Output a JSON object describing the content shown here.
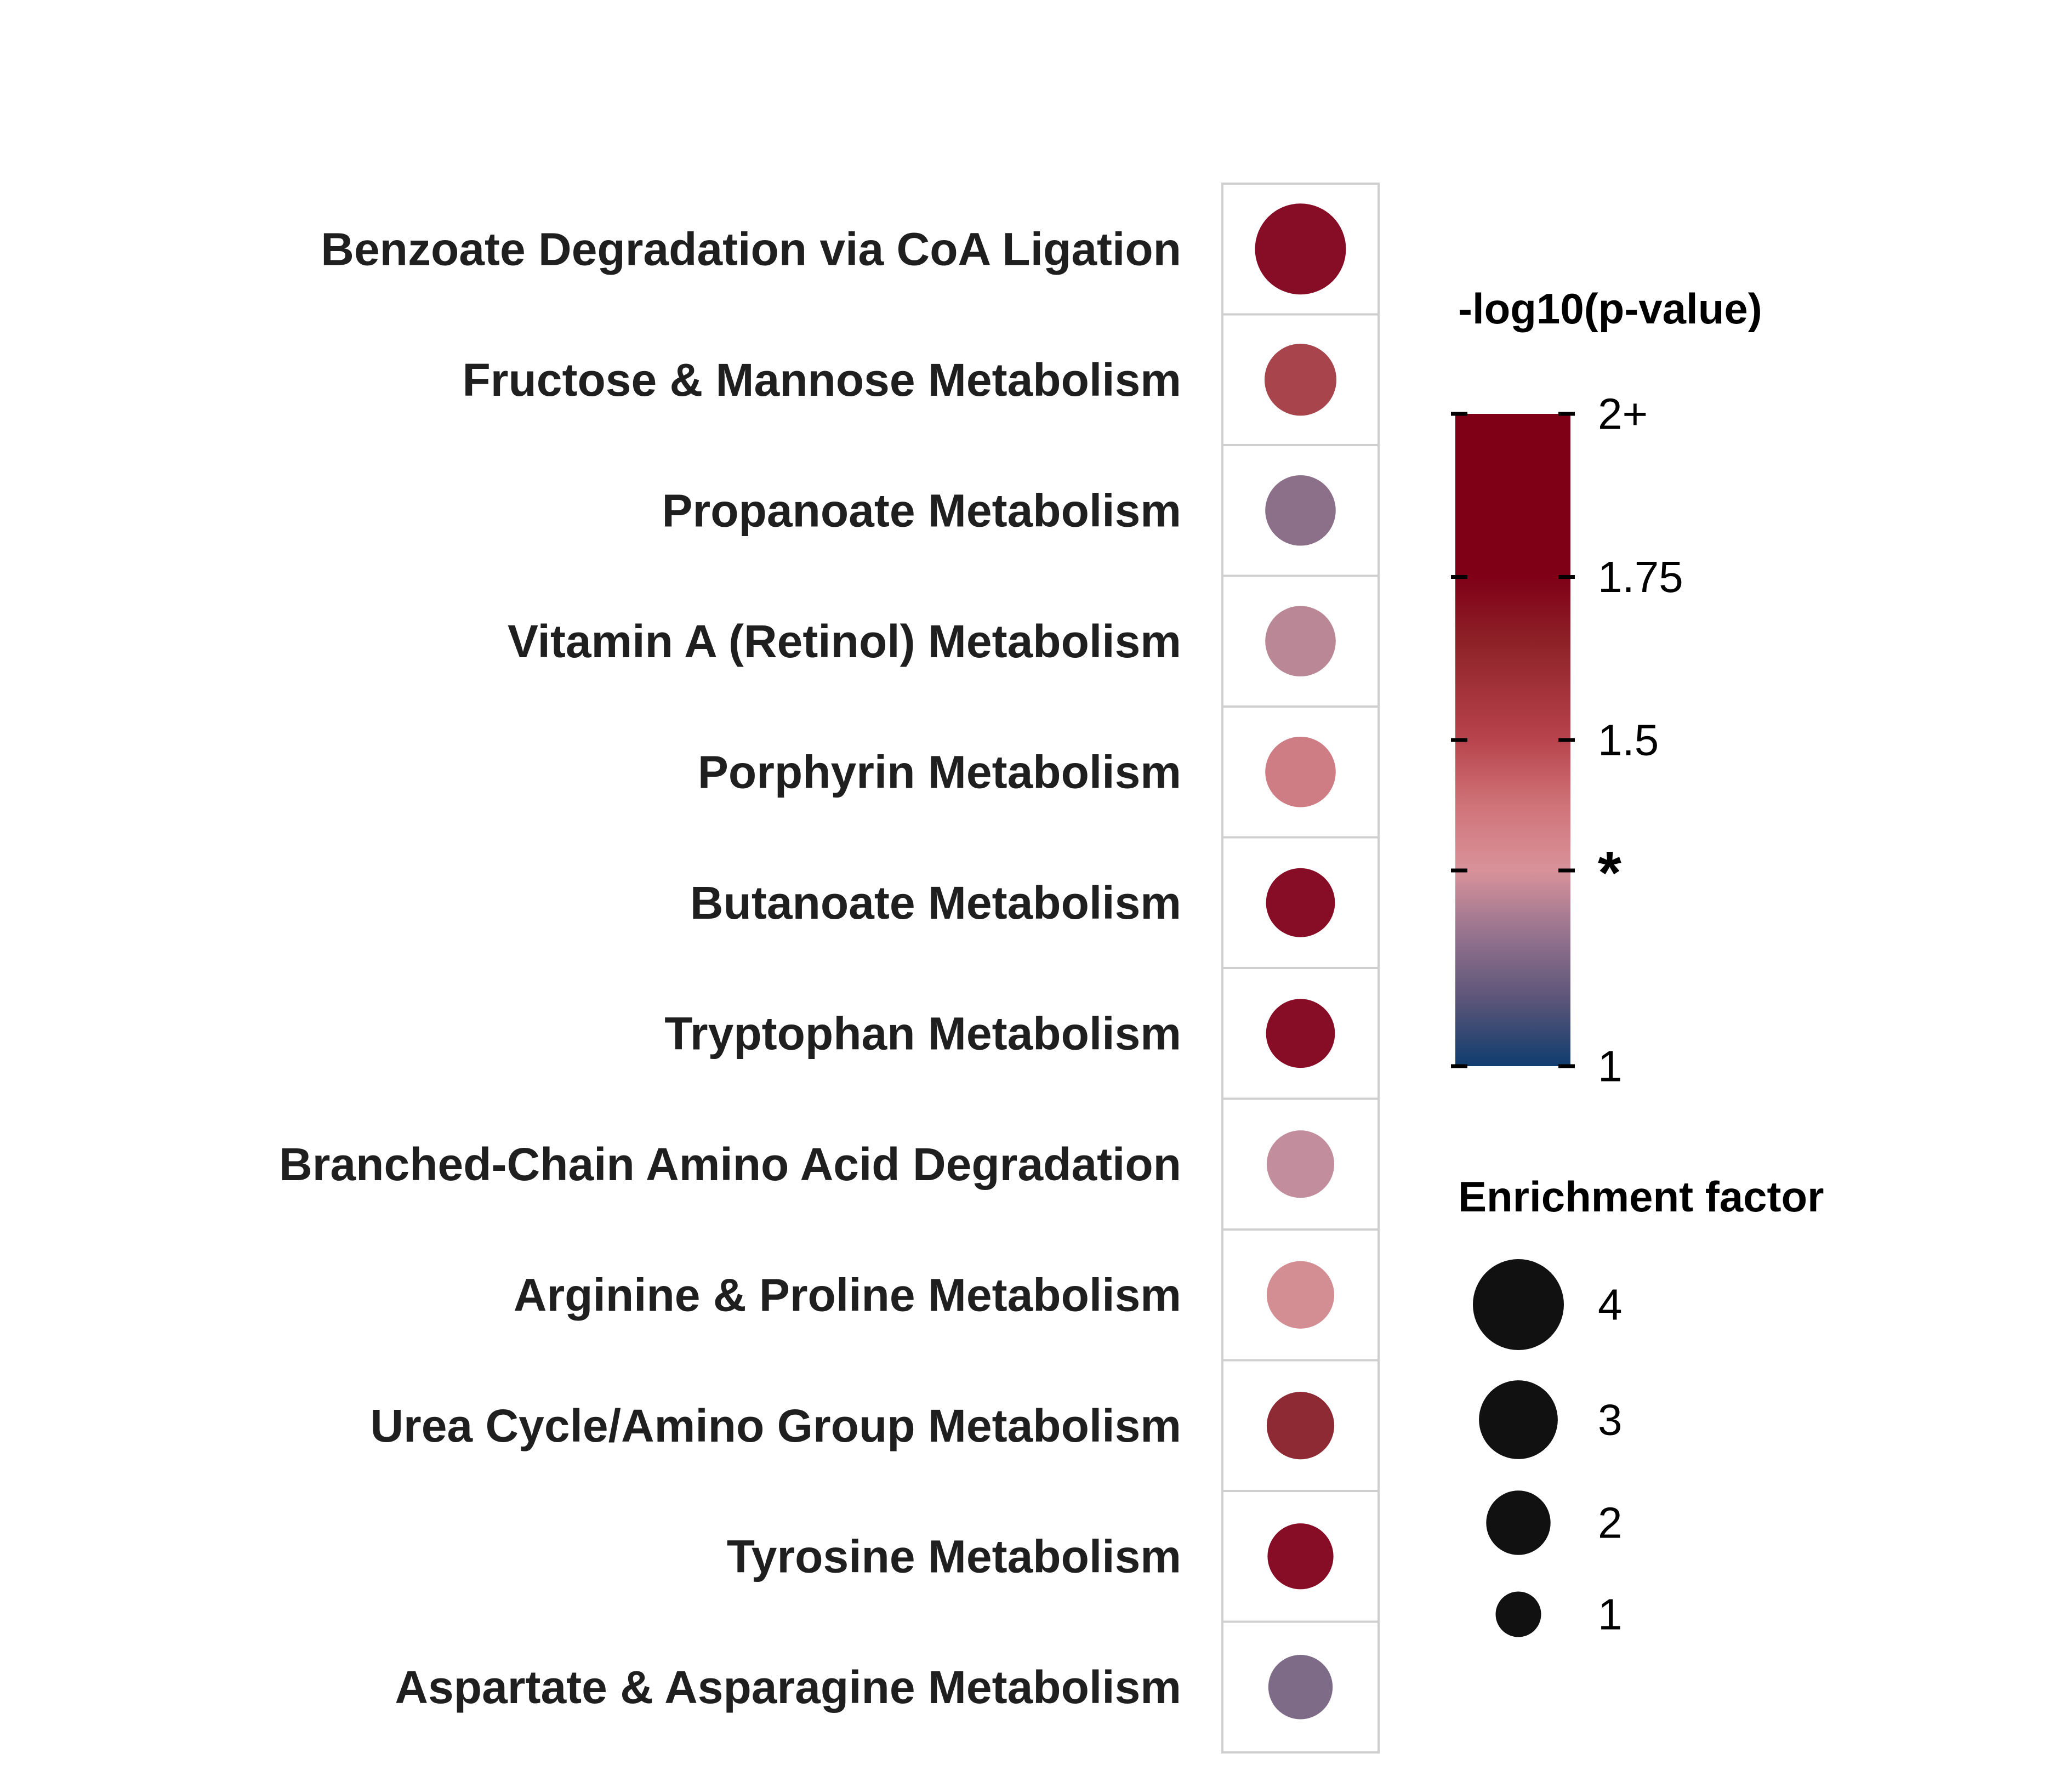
{
  "chart_data": {
    "type": "scatter",
    "categories": [
      "Benzoate Degradation via CoA Ligation",
      "Fructose & Mannose Metabolism",
      "Propanoate Metabolism",
      "Vitamin A (Retinol) Metabolism",
      "Porphyrin Metabolism",
      "Butanoate Metabolism",
      "Tryptophan Metabolism",
      "Branched-Chain Amino Acid Degradation",
      "Arginine & Proline Metabolism",
      "Urea Cycle/Amino Group Metabolism",
      "Tyrosine Metabolism",
      "Aspartate & Asparagine Metabolism"
    ],
    "series": [
      {
        "neg_log10_p": [
          2.0,
          1.55,
          1.15,
          1.3,
          1.42,
          1.95,
          1.95,
          1.3,
          1.4,
          1.65,
          1.95,
          1.15
        ],
        "enrichment_factor": [
          4.0,
          2.5,
          2.4,
          2.4,
          2.4,
          2.3,
          2.3,
          2.2,
          2.2,
          2.2,
          2.1,
          2.0
        ],
        "colors": [
          "#870c25",
          "#a8444b",
          "#8c7089",
          "#b98795",
          "#ce7d84",
          "#870c25",
          "#870c25",
          "#c28d9d",
          "#d38e94",
          "#8e2a34",
          "#870c25",
          "#7e6b87"
        ]
      }
    ],
    "color_legend": {
      "title": "-log10(p-value)",
      "min": 1,
      "max": 2,
      "tick_values": [
        2,
        1.75,
        1.5,
        1.3,
        1
      ],
      "tick_labels": [
        "2+",
        "1.75",
        "1.5",
        "*",
        "1"
      ],
      "gradient_stops": [
        {
          "value": 1.0,
          "color": "#0f3d6e"
        },
        {
          "value": 1.1,
          "color": "#5a5478"
        },
        {
          "value": 1.2,
          "color": "#94728e"
        },
        {
          "value": 1.3,
          "color": "#d9929a"
        },
        {
          "value": 1.4,
          "color": "#cf7378"
        },
        {
          "value": 1.5,
          "color": "#b8444d"
        },
        {
          "value": 1.65,
          "color": "#8e2128"
        },
        {
          "value": 1.75,
          "color": "#7f0016"
        },
        {
          "value": 2.0,
          "color": "#7f0016"
        }
      ]
    },
    "size_legend": {
      "title": "Enrichment factor",
      "values": [
        4,
        3,
        2,
        1
      ],
      "labels": [
        "4",
        "3",
        "2",
        "1"
      ],
      "color": "#111111"
    },
    "grid": true,
    "legend_position": "right"
  }
}
